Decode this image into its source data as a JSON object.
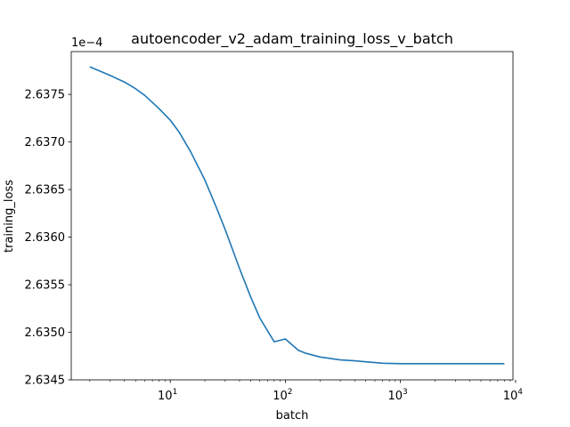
{
  "chart_data": {
    "type": "line",
    "title": "autoencoder_v2_adam_training_loss_v_batch",
    "xlabel": "batch",
    "ylabel": "training_loss",
    "xscale": "log",
    "xlim": [
      1.38,
      9500
    ],
    "ylim": [
      2.6345,
      2.63795
    ],
    "y_offset_text": "1e−4",
    "grid": false,
    "x_major_ticks": [
      {
        "value": 10,
        "base": "10",
        "exp": "1"
      },
      {
        "value": 100,
        "base": "10",
        "exp": "2"
      },
      {
        "value": 1000,
        "base": "10",
        "exp": "3"
      },
      {
        "value": 10000,
        "base": "10",
        "exp": "4"
      }
    ],
    "y_ticks": [
      {
        "value": 2.6345,
        "label": "2.6345"
      },
      {
        "value": 2.635,
        "label": "2.6350"
      },
      {
        "value": 2.6355,
        "label": "2.6355"
      },
      {
        "value": 2.636,
        "label": "2.6360"
      },
      {
        "value": 2.6365,
        "label": "2.6365"
      },
      {
        "value": 2.637,
        "label": "2.6370"
      },
      {
        "value": 2.6375,
        "label": "2.6375"
      }
    ],
    "series": [
      {
        "color": "#1f77b4",
        "x": [
          2,
          3,
          4,
          5,
          6,
          8,
          10,
          12,
          15,
          20,
          25,
          30,
          40,
          50,
          60,
          80,
          100,
          130,
          150,
          200,
          300,
          400,
          500,
          700,
          1000,
          2000,
          3000,
          5000,
          8000
        ],
        "y": [
          2.63779,
          2.6377,
          2.63763,
          2.63756,
          2.63749,
          2.63735,
          2.63723,
          2.6371,
          2.6369,
          2.6366,
          2.63632,
          2.63608,
          2.63567,
          2.63537,
          2.63515,
          2.6349,
          2.63493,
          2.63481,
          2.63478,
          2.63474,
          2.63471,
          2.6347,
          2.63469,
          2.634675,
          2.63467,
          2.63467,
          2.63467,
          2.63467,
          2.63467
        ]
      }
    ]
  }
}
